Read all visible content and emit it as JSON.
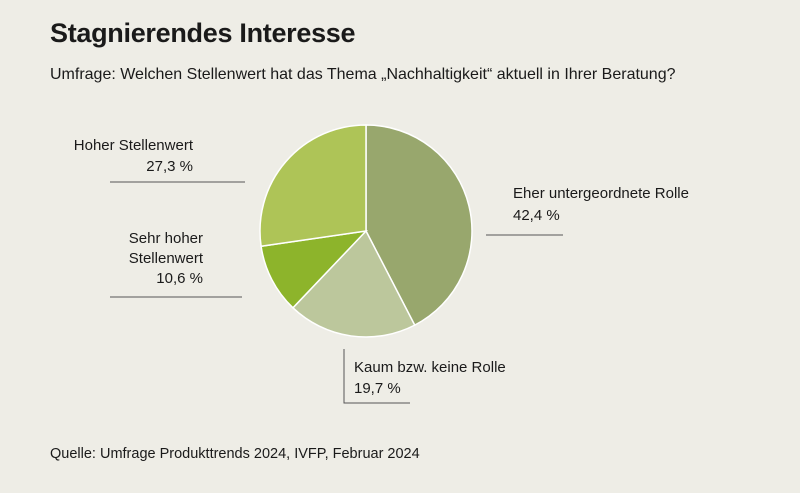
{
  "header": {
    "title": "Stagnierendes Interesse",
    "subtitle": "Umfrage: Welchen Stellenwert hat das Thema „Nachhaltigkeit“ aktuell in Ihrer Beratung?"
  },
  "footer": {
    "source": "Quelle: Umfrage Produkttrends 2024, IVFP, Februar 2024"
  },
  "chart_data": {
    "type": "pie",
    "title": "Stagnierendes Interesse",
    "slices": [
      {
        "label": "Eher untergeordnete Rolle",
        "label_lines": [
          "Eher untergeordnete Rolle"
        ],
        "value": 42.4,
        "value_label": "42,4 %",
        "color": "#98a76d"
      },
      {
        "label": "Kaum bzw. keine Rolle",
        "label_lines": [
          "Kaum bzw. keine Rolle"
        ],
        "value": 19.7,
        "value_label": "19,7 %",
        "color": "#bcc79c"
      },
      {
        "label": "Sehr hoher Stellenwert",
        "label_lines": [
          "Sehr hoher",
          "Stellenwert"
        ],
        "value": 10.6,
        "value_label": "10,6 %",
        "color": "#8db42b"
      },
      {
        "label": "Hoher Stellenwert",
        "label_lines": [
          "Hoher Stellenwert"
        ],
        "value": 27.3,
        "value_label": "27,3 %",
        "color": "#aec457"
      }
    ],
    "start_angle": "12 o'clock",
    "direction": "clockwise",
    "legend": "none"
  }
}
